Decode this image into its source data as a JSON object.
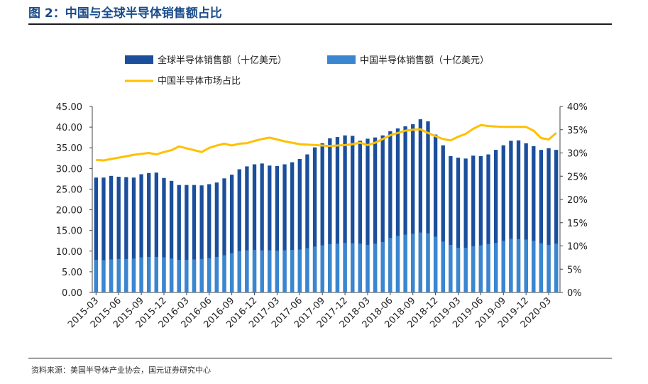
{
  "header": {
    "title": "图 2：中国与全球半导体销售额占比"
  },
  "footer": {
    "source": "资料来源：美国半导体产业协会，国元证券研究中心"
  },
  "colors": {
    "title": "#1a4c8b",
    "global_bar": "#1b4f9c",
    "china_bar": "#3a86d0",
    "share_line": "#ffc000"
  },
  "chart_data": {
    "type": "bar",
    "x": [
      "2015-03",
      "2015-04",
      "2015-05",
      "2015-06",
      "2015-07",
      "2015-08",
      "2015-09",
      "2015-10",
      "2015-11",
      "2015-12",
      "2016-01",
      "2016-02",
      "2016-03",
      "2016-04",
      "2016-05",
      "2016-06",
      "2016-07",
      "2016-08",
      "2016-09",
      "2016-10",
      "2016-11",
      "2016-12",
      "2017-01",
      "2017-02",
      "2017-03",
      "2017-04",
      "2017-05",
      "2017-06",
      "2017-07",
      "2017-08",
      "2017-09",
      "2017-10",
      "2017-11",
      "2017-12",
      "2018-01",
      "2018-02",
      "2018-03",
      "2018-04",
      "2018-05",
      "2018-06",
      "2018-07",
      "2018-08",
      "2018-09",
      "2018-10",
      "2018-11",
      "2018-12",
      "2019-01",
      "2019-02",
      "2019-03",
      "2019-04",
      "2019-05",
      "2019-06",
      "2019-07",
      "2019-08",
      "2019-09",
      "2019-10",
      "2019-11",
      "2019-12",
      "2020-01",
      "2020-02",
      "2020-03",
      "2020-04"
    ],
    "x_tick_labels": [
      "2015-03",
      "2015-06",
      "2015-09",
      "2015-12",
      "2016-03",
      "2016-06",
      "2016-09",
      "2016-12",
      "2017-03",
      "2017-06",
      "2017-09",
      "2017-12",
      "2018-03",
      "2018-06",
      "2018-09",
      "2018-12",
      "2019-03",
      "2019-06",
      "2019-09",
      "2019-12",
      "2020-03"
    ],
    "series": [
      {
        "name": "全球半导体销售额（十亿美元）",
        "type": "bar",
        "axis": "left",
        "values": [
          27.8,
          27.8,
          28.2,
          28.0,
          27.9,
          27.8,
          28.6,
          28.9,
          29.0,
          27.7,
          27.0,
          26.0,
          26.0,
          26.0,
          25.9,
          26.2,
          26.6,
          27.6,
          28.5,
          29.8,
          30.5,
          31.0,
          31.2,
          30.7,
          30.6,
          31.0,
          31.5,
          32.3,
          33.4,
          35.1,
          36.1,
          37.3,
          37.6,
          38.0,
          37.9,
          36.7,
          37.2,
          37.5,
          38.0,
          39.0,
          39.7,
          40.2,
          40.7,
          41.9,
          41.4,
          38.2,
          35.6,
          33.0,
          32.6,
          32.4,
          33.1,
          33.0,
          33.4,
          34.5,
          35.6,
          36.7,
          36.8,
          36.1,
          35.4,
          34.5,
          34.9,
          34.5
        ]
      },
      {
        "name": "中国半导体销售额（十亿美元）",
        "type": "bar",
        "axis": "left",
        "values": [
          7.9,
          7.8,
          8.0,
          8.1,
          8.1,
          8.2,
          8.5,
          8.6,
          8.6,
          8.5,
          8.2,
          7.9,
          7.9,
          8.0,
          8.1,
          8.3,
          8.6,
          9.0,
          9.5,
          10.0,
          10.2,
          10.3,
          10.2,
          10.2,
          10.1,
          10.2,
          10.3,
          10.4,
          10.7,
          11.1,
          11.4,
          11.7,
          11.8,
          12.0,
          11.9,
          11.8,
          11.5,
          11.8,
          12.2,
          13.2,
          13.7,
          14.0,
          14.2,
          14.5,
          14.3,
          13.5,
          12.3,
          11.5,
          10.8,
          10.8,
          11.2,
          11.4,
          11.7,
          12.0,
          12.5,
          13.0,
          12.9,
          12.8,
          12.5,
          11.9,
          11.5,
          11.8
        ]
      },
      {
        "name": "中国半导体市场占比",
        "type": "line",
        "axis": "right",
        "values": [
          28.5,
          28.4,
          28.7,
          29.0,
          29.3,
          29.6,
          29.8,
          30.0,
          29.7,
          30.2,
          30.6,
          31.4,
          31.0,
          30.6,
          30.2,
          31.1,
          31.6,
          32.0,
          31.6,
          32.0,
          32.1,
          32.6,
          33.0,
          33.3,
          32.9,
          32.5,
          32.2,
          31.9,
          31.8,
          31.7,
          31.6,
          31.5,
          31.6,
          31.7,
          31.9,
          32.2,
          31.7,
          32.2,
          33.0,
          33.8,
          34.3,
          34.8,
          35.0,
          35.1,
          34.3,
          33.6,
          33.0,
          32.7,
          33.5,
          34.1,
          35.2,
          36.0,
          35.8,
          35.7,
          35.6,
          35.6,
          35.6,
          35.6,
          34.8,
          33.2,
          32.9,
          34.3
        ]
      }
    ],
    "y_left": {
      "min": 0,
      "max": 45,
      "ticks": [
        "0.00",
        "5.00",
        "10.00",
        "15.00",
        "20.00",
        "25.00",
        "30.00",
        "35.00",
        "40.00",
        "45.00"
      ]
    },
    "y_right": {
      "min": 0,
      "max": 40,
      "unit": "%",
      "ticks": [
        "0%",
        "5%",
        "10%",
        "15%",
        "20%",
        "25%",
        "30%",
        "35%",
        "40%"
      ]
    },
    "legend": {
      "placement": "top-center",
      "entries": [
        "全球半导体销售额（十亿美元）",
        "中国半导体销售额（十亿美元）",
        "中国半导体市场占比"
      ]
    },
    "grid": false
  }
}
